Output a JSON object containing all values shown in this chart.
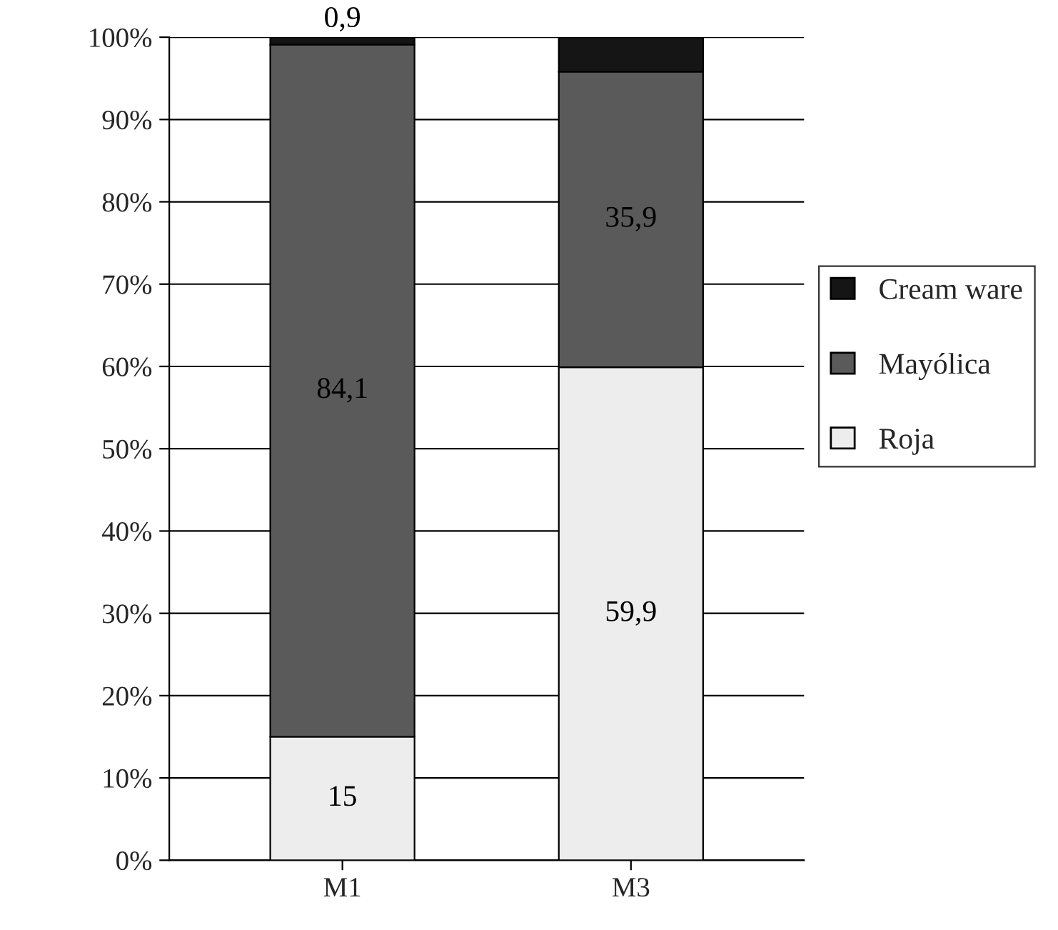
{
  "chart_data": {
    "type": "bar",
    "stacked": true,
    "categories": [
      "M1",
      "M3"
    ],
    "series": [
      {
        "name": "Roja",
        "color": "#ededed",
        "values": [
          15,
          59.9
        ],
        "value_labels": [
          "15",
          "59,9"
        ]
      },
      {
        "name": "Mayólica",
        "color": "#5a5a5a",
        "values": [
          84.1,
          35.9
        ],
        "value_labels": [
          "84,1",
          "35,9"
        ]
      },
      {
        "name": "Cream ware",
        "color": "#151515",
        "values": [
          0.9,
          4.2
        ],
        "value_labels": [
          "0,9",
          null
        ]
      }
    ],
    "ylim": [
      0,
      100
    ],
    "yticks": [
      {
        "value": 0,
        "label": "0%"
      },
      {
        "value": 10,
        "label": "10%"
      },
      {
        "value": 20,
        "label": "20%"
      },
      {
        "value": 30,
        "label": "30%"
      },
      {
        "value": 40,
        "label": "40%"
      },
      {
        "value": 50,
        "label": "50%"
      },
      {
        "value": 60,
        "label": "60%"
      },
      {
        "value": 70,
        "label": "70%"
      },
      {
        "value": 80,
        "label": "80%"
      },
      {
        "value": 90,
        "label": "90%"
      },
      {
        "value": 100,
        "label": "100%"
      }
    ],
    "grid": "y",
    "legend": "right"
  }
}
